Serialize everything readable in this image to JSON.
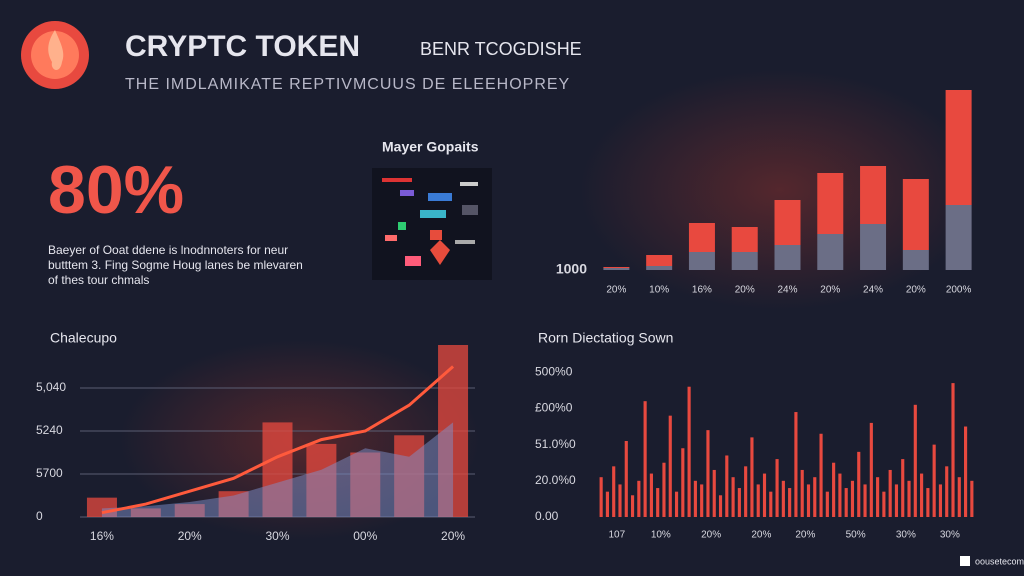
{
  "header": {
    "title": "CRYPTC TOKEN",
    "title_suffix": "BENR TCOGDISHE",
    "subtitle": "THE IMDLAMIKATE REPTIVMCUUS DE ELEEHOPREY"
  },
  "stat": {
    "value": "80%",
    "lines": [
      "Baeyer of Ooat ddene is lnodnnoters for neur",
      "butttem 3. Fing Sogme Houg lanes be mlevaren",
      "of thes tour chmals"
    ]
  },
  "panel": {
    "title": "Mayer Gopaits"
  },
  "footer": {
    "text": "oousetecom"
  },
  "chart_data": [
    {
      "type": "stacked-bar",
      "categories": [
        "20%",
        "10%",
        "16%",
        "20%",
        "24%",
        "20%",
        "24%",
        "20%",
        "200%"
      ],
      "series": [
        {
          "name": "base",
          "color": "#6b6e86",
          "values": [
            2,
            4,
            18,
            18,
            25,
            36,
            46,
            20,
            65
          ]
        },
        {
          "name": "top",
          "color": "#e8493f",
          "values": [
            1,
            11,
            29,
            25,
            45,
            61,
            58,
            71,
            115
          ]
        }
      ],
      "ylim": [
        0,
        180
      ],
      "yticks": [
        {
          "value": 0,
          "label": "1000"
        }
      ]
    },
    {
      "type": "combo",
      "title": "Chalecupo",
      "categories": [
        "16%",
        null,
        "20%",
        null,
        "30%",
        null,
        "00%",
        null,
        "20%"
      ],
      "series": [
        {
          "name": "bars",
          "color": "#e8493f",
          "values": [
            0.45,
            0.2,
            0.3,
            0.6,
            2.2,
            1.7,
            1.5,
            1.9,
            4.0
          ]
        },
        {
          "name": "area",
          "color": "#7d8fc9",
          "values": [
            0.2,
            0.25,
            0.35,
            0.5,
            0.8,
            1.1,
            1.6,
            1.4,
            2.2
          ]
        },
        {
          "name": "line",
          "color": "#ff5a3c",
          "values": [
            0.1,
            0.3,
            0.6,
            0.9,
            1.4,
            1.8,
            2.0,
            2.6,
            3.5
          ]
        }
      ],
      "ylim": [
        0,
        4
      ],
      "yticks": [
        {
          "value": 0,
          "label": "0"
        },
        {
          "value": 1,
          "label": "5700"
        },
        {
          "value": 2,
          "label": "5240"
        },
        {
          "value": 3,
          "label": "5,040"
        }
      ],
      "grid": true
    },
    {
      "type": "spike-bar",
      "title": "Rorn Diectatiog Sown",
      "color": "#e8493f",
      "values": [
        1.1,
        0.7,
        1.4,
        0.9,
        2.1,
        0.6,
        1.0,
        3.2,
        1.2,
        0.8,
        1.5,
        2.8,
        0.7,
        1.9,
        3.6,
        1.0,
        0.9,
        2.4,
        1.3,
        0.6,
        1.7,
        1.1,
        0.8,
        1.4,
        2.2,
        0.9,
        1.2,
        0.7,
        1.6,
        1.0,
        0.8,
        2.9,
        1.3,
        0.9,
        1.1,
        2.3,
        0.7,
        1.5,
        1.2,
        0.8,
        1.0,
        1.8,
        0.9,
        2.6,
        1.1,
        0.7,
        1.3,
        0.9,
        1.6,
        1.0,
        3.1,
        1.2,
        0.8,
        2.0,
        0.9,
        1.4,
        3.7,
        1.1,
        2.5,
        1.0
      ],
      "xlim": [
        0,
        60
      ],
      "xticks": [
        {
          "value": 3,
          "label": "107"
        },
        {
          "value": 10,
          "label": "10%"
        },
        {
          "value": 18,
          "label": "20%"
        },
        {
          "value": 26,
          "label": "20%"
        },
        {
          "value": 33,
          "label": "20%"
        },
        {
          "value": 41,
          "label": "50%"
        },
        {
          "value": 49,
          "label": "30%"
        },
        {
          "value": 56,
          "label": "30%"
        }
      ],
      "ylim": [
        0,
        4.2
      ],
      "yticks": [
        {
          "value": 0,
          "label": "0.00"
        },
        {
          "value": 1,
          "label": "20.0%0"
        },
        {
          "value": 2,
          "label": "51.0%0"
        },
        {
          "value": 3,
          "label": "£00%0"
        },
        {
          "value": 4,
          "label": "500%0"
        }
      ]
    }
  ]
}
